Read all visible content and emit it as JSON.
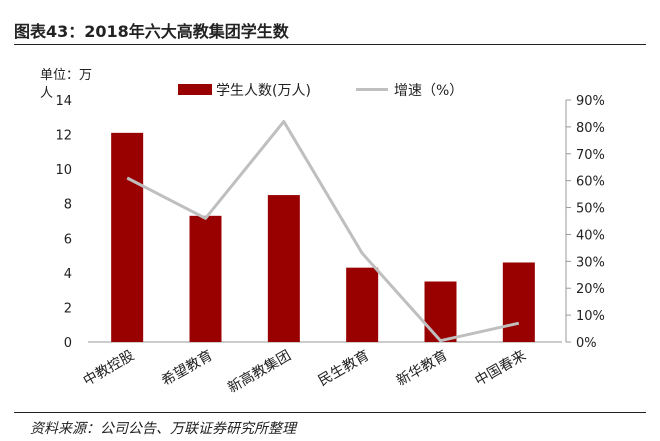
{
  "header": {
    "title": "图表43：2018年六大高教集团学生数"
  },
  "footer": {
    "source": "资料来源：公司公告、万联证券研究所整理"
  },
  "chart_data": {
    "type": "bar",
    "title": "2018年六大高教集团学生数",
    "categories": [
      "中教控股",
      "希望教育",
      "新高教集团",
      "民生教育",
      "新华教育",
      "中国春来"
    ],
    "unit_label_line1": "单位：万",
    "unit_label_line2": "人",
    "series": [
      {
        "name": "学生人数(万人)",
        "type": "bar",
        "axis": "left",
        "color": "#990000",
        "values": [
          12.1,
          7.3,
          8.5,
          4.3,
          3.5,
          4.6
        ]
      },
      {
        "name": "增速（%）",
        "type": "line",
        "axis": "right",
        "color": "#bfbfbf",
        "values": [
          61,
          46,
          82,
          33,
          0.5,
          7
        ]
      }
    ],
    "y_left": {
      "min": 0,
      "max": 14,
      "step": 2,
      "ticks": [
        "0",
        "2",
        "4",
        "6",
        "8",
        "10",
        "12",
        "14"
      ]
    },
    "y_right": {
      "min": 0,
      "max": 90,
      "step": 10,
      "ticks": [
        "0%",
        "10%",
        "20%",
        "30%",
        "40%",
        "50%",
        "60%",
        "70%",
        "80%",
        "90%"
      ]
    },
    "legend_position": "top"
  }
}
